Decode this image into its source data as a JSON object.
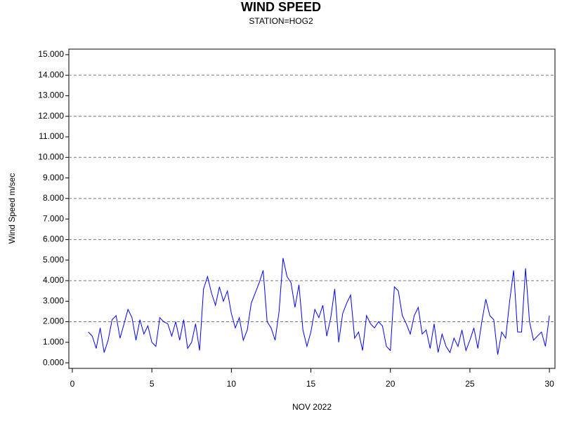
{
  "chart_data": {
    "type": "line",
    "title": "WIND SPEED",
    "subtitle": "STATION=HOG2",
    "x_label": "NOV 2022",
    "y_label": "Wind Speed m/sec",
    "x": [
      1,
      1.25,
      1.5,
      1.75,
      2,
      2.25,
      2.5,
      2.75,
      3,
      3.25,
      3.5,
      3.75,
      4,
      4.25,
      4.5,
      4.75,
      5,
      5.25,
      5.5,
      5.75,
      6,
      6.25,
      6.5,
      6.75,
      7,
      7.25,
      7.5,
      7.75,
      8,
      8.25,
      8.5,
      8.75,
      9,
      9.25,
      9.5,
      9.75,
      10,
      10.25,
      10.5,
      10.75,
      11,
      11.25,
      11.5,
      11.75,
      12,
      12.25,
      12.5,
      12.75,
      13,
      13.25,
      13.5,
      13.75,
      14,
      14.25,
      14.5,
      14.75,
      15,
      15.25,
      15.5,
      15.75,
      16,
      16.25,
      16.5,
      16.75,
      17,
      17.25,
      17.5,
      17.75,
      18,
      18.25,
      18.5,
      18.75,
      19,
      19.25,
      19.5,
      19.75,
      20,
      20.25,
      20.5,
      20.75,
      21,
      21.25,
      21.5,
      21.75,
      22,
      22.25,
      22.5,
      22.75,
      23,
      23.25,
      23.5,
      23.75,
      24,
      24.25,
      24.5,
      24.75,
      25,
      25.25,
      25.5,
      25.75,
      26,
      26.25,
      26.5,
      26.75,
      27,
      27.25,
      27.5,
      27.75,
      28,
      28.25,
      28.5,
      28.75,
      29,
      29.25,
      29.5,
      29.75,
      30
    ],
    "series": [
      {
        "name": "Wind Speed",
        "color": "#0000ff",
        "values": [
          1.5,
          1.3,
          0.7,
          1.7,
          0.5,
          1.1,
          2.1,
          2.3,
          1.2,
          1.9,
          2.6,
          2.2,
          1.1,
          2.1,
          1.4,
          1.8,
          1.0,
          0.8,
          2.2,
          2.0,
          1.9,
          1.3,
          2.0,
          1.1,
          2.1,
          0.7,
          1.0,
          1.9,
          0.6,
          3.6,
          4.2,
          3.4,
          2.8,
          3.7,
          3.0,
          3.5,
          2.4,
          1.7,
          2.2,
          1.1,
          1.6,
          2.9,
          3.4,
          3.9,
          4.5,
          2.0,
          1.7,
          1.1,
          2.5,
          5.1,
          4.2,
          3.9,
          2.7,
          3.8,
          1.6,
          0.8,
          1.5,
          2.6,
          2.2,
          2.8,
          1.3,
          2.2,
          3.6,
          1.0,
          2.4,
          2.9,
          3.3,
          1.2,
          1.5,
          0.6,
          2.3,
          1.9,
          1.7,
          2.0,
          1.8,
          0.8,
          0.6,
          3.7,
          3.5,
          2.3,
          1.9,
          1.4,
          2.3,
          2.7,
          1.4,
          1.6,
          0.7,
          1.9,
          0.5,
          1.4,
          0.8,
          0.5,
          1.2,
          0.8,
          1.6,
          0.6,
          1.1,
          1.7,
          0.7,
          2.0,
          3.1,
          2.3,
          2.1,
          0.4,
          1.5,
          1.2,
          3.0,
          4.5,
          1.5,
          1.5,
          4.6,
          2.0,
          1.1,
          1.3,
          1.5,
          0.8,
          2.3
        ]
      }
    ],
    "xlim": [
      -0.22,
      30.35
    ],
    "ylim": [
      -0.27,
      15.27
    ],
    "xticks": [
      0,
      5,
      10,
      15,
      20,
      25,
      30
    ],
    "yticks": [
      {
        "value": 0,
        "label": "0.000"
      },
      {
        "value": 1,
        "label": "1.000"
      },
      {
        "value": 2,
        "label": "2.000"
      },
      {
        "value": 3,
        "label": "3.000"
      },
      {
        "value": 4,
        "label": "4.000"
      },
      {
        "value": 5,
        "label": "5.000"
      },
      {
        "value": 6,
        "label": "6.000"
      },
      {
        "value": 7,
        "label": "7.000"
      },
      {
        "value": 8,
        "label": "8.000"
      },
      {
        "value": 9,
        "label": "9.000"
      },
      {
        "value": 10,
        "label": "10.000"
      },
      {
        "value": 11,
        "label": "11.000"
      },
      {
        "value": 12,
        "label": "12.000"
      },
      {
        "value": 13,
        "label": "13.000"
      },
      {
        "value": 14,
        "label": "14.000"
      },
      {
        "value": 15,
        "label": "15.000"
      }
    ],
    "grid": true
  }
}
